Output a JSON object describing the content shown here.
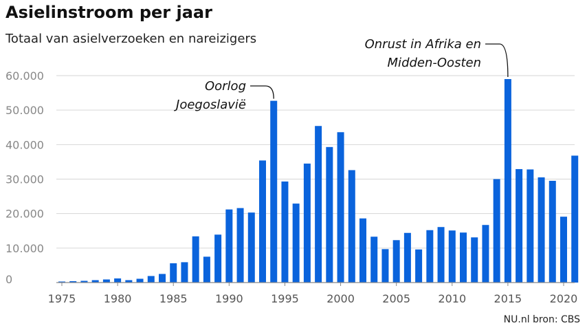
{
  "title": "Asielinstroom per jaar",
  "subtitle": "Totaal van asielverzoeken en nareizigers",
  "source": "NU.nl bron: CBS",
  "chart_data": {
    "type": "bar",
    "title": "Asielinstroom per jaar",
    "subtitle": "Totaal van asielverzoeken en nareizigers",
    "color": "#0a63dc",
    "grid": true,
    "ylim": [
      0,
      60000
    ],
    "yticks": [
      0,
      10000,
      20000,
      30000,
      40000,
      50000,
      60000
    ],
    "ytick_labels": [
      "0",
      "10.000",
      "20.000",
      "30.000",
      "40.000",
      "50.000",
      "60.000"
    ],
    "xtick_labels": [
      "1975",
      "1980",
      "1985",
      "1990",
      "1995",
      "2000",
      "2005",
      "2010",
      "2015",
      "2020"
    ],
    "categories": [
      1975,
      1976,
      1977,
      1978,
      1979,
      1980,
      1981,
      1982,
      1983,
      1984,
      1985,
      1986,
      1987,
      1988,
      1989,
      1990,
      1991,
      1992,
      1993,
      1994,
      1995,
      1996,
      1997,
      1998,
      1999,
      2000,
      2001,
      2002,
      2003,
      2004,
      2005,
      2006,
      2007,
      2008,
      2009,
      2010,
      2011,
      2012,
      2013,
      2014,
      2015,
      2016,
      2017,
      2018,
      2019,
      2020,
      2021
    ],
    "values": [
      300,
      400,
      500,
      700,
      900,
      1200,
      700,
      1100,
      1900,
      2500,
      5600,
      5900,
      13400,
      7500,
      13900,
      21200,
      21600,
      20300,
      35400,
      52700,
      29300,
      22900,
      34500,
      45400,
      39300,
      43600,
      32600,
      18600,
      13300,
      9700,
      12300,
      14400,
      9600,
      15200,
      16100,
      15100,
      14500,
      13100,
      16700,
      30000,
      59000,
      32900,
      32800,
      30500,
      29500,
      19100,
      36800
    ],
    "annotations": [
      {
        "year": 1994,
        "lines": [
          "Oorlog",
          "Joegoslavië"
        ]
      },
      {
        "year": 2015,
        "lines": [
          "Onrust in Afrika en",
          "Midden-Oosten"
        ]
      }
    ]
  }
}
